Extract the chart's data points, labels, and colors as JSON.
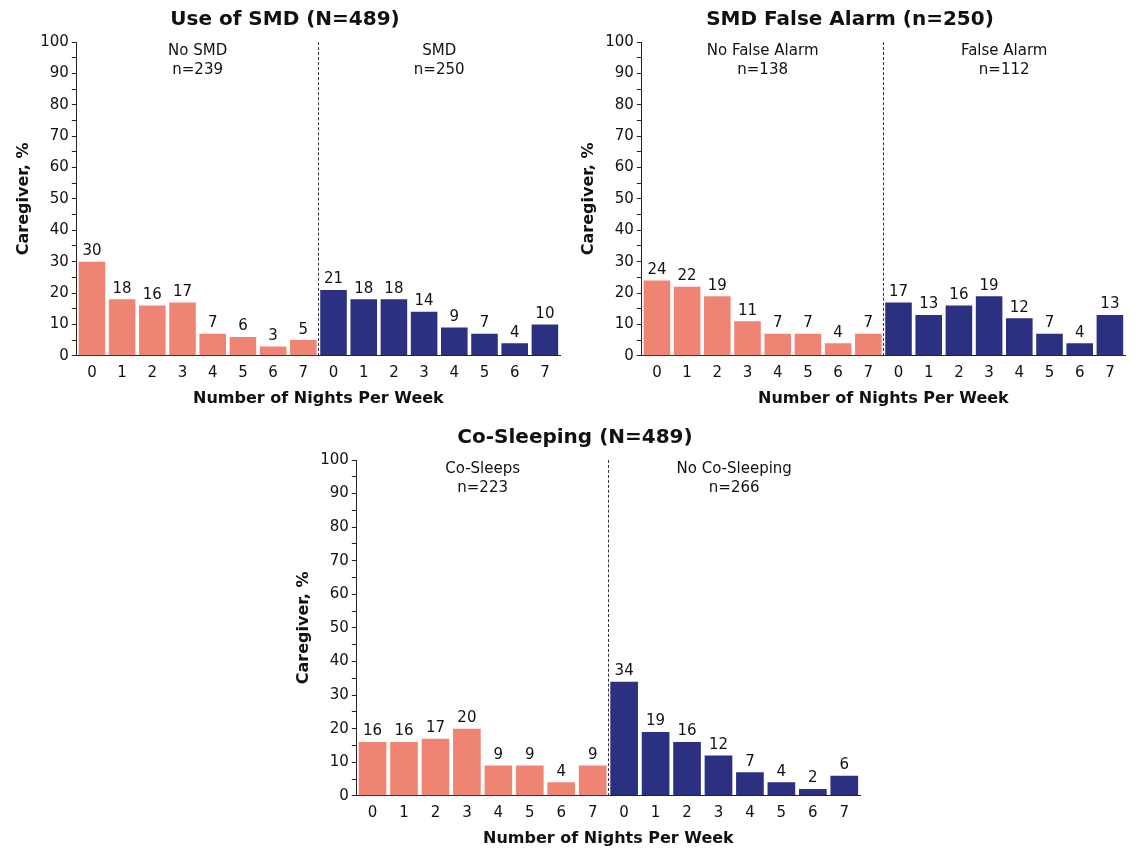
{
  "chart_data": [
    {
      "type": "bar",
      "title": "Use of SMD (N=489)",
      "xlabel": "Number of Nights Per Week",
      "ylabel": "Caregiver, %",
      "categories": [
        "0",
        "1",
        "2",
        "3",
        "4",
        "5",
        "6",
        "7",
        "0",
        "1",
        "2",
        "3",
        "4",
        "5",
        "6",
        "7"
      ],
      "values": [
        30,
        18,
        16,
        17,
        7,
        6,
        3,
        5,
        21,
        18,
        18,
        14,
        9,
        7,
        4,
        10
      ],
      "colors": [
        "#f08474",
        "#f08474",
        "#f08474",
        "#f08474",
        "#f08474",
        "#f08474",
        "#f08474",
        "#f08474",
        "#2b3180",
        "#2b3180",
        "#2b3180",
        "#2b3180",
        "#2b3180",
        "#2b3180",
        "#2b3180",
        "#2b3180"
      ],
      "ylim": [
        0,
        100
      ],
      "yticks": [
        0,
        {
          "value": 5,
          "label": null
        },
        10,
        {
          "value": 15,
          "label": null
        },
        20,
        {
          "value": 25,
          "label": null
        },
        30,
        {
          "value": 35,
          "label": null
        },
        40,
        {
          "value": 45,
          "label": null
        },
        50,
        {
          "value": 55,
          "label": null
        },
        60,
        {
          "value": 65,
          "label": null
        },
        70,
        {
          "value": 75,
          "label": null
        },
        80,
        {
          "value": 85,
          "label": null
        },
        90,
        {
          "value": 95,
          "label": null
        },
        100
      ],
      "annotations": [
        "No SMD\nn=239",
        "SMD\nn=250"
      ],
      "data_labels": true,
      "grid": false,
      "legend": false
    },
    {
      "type": "bar",
      "title": "SMD False Alarm (n=250)",
      "xlabel": "Number of Nights Per Week",
      "ylabel": "Caregiver, %",
      "categories": [
        "0",
        "1",
        "2",
        "3",
        "4",
        "5",
        "6",
        "7",
        "0",
        "1",
        "2",
        "3",
        "4",
        "5",
        "6",
        "7"
      ],
      "values": [
        24,
        22,
        19,
        11,
        7,
        7,
        4,
        7,
        17,
        13,
        16,
        19,
        12,
        7,
        4,
        13
      ],
      "colors": [
        "#f08474",
        "#f08474",
        "#f08474",
        "#f08474",
        "#f08474",
        "#f08474",
        "#f08474",
        "#f08474",
        "#2b3180",
        "#2b3180",
        "#2b3180",
        "#2b3180",
        "#2b3180",
        "#2b3180",
        "#2b3180",
        "#2b3180"
      ],
      "ylim": [
        0,
        100
      ],
      "yticks": [
        0,
        {
          "value": 5,
          "label": null
        },
        10,
        {
          "value": 15,
          "label": null
        },
        20,
        {
          "value": 25,
          "label": null
        },
        30,
        {
          "value": 35,
          "label": null
        },
        40,
        {
          "value": 45,
          "label": null
        },
        50,
        {
          "value": 55,
          "label": null
        },
        60,
        {
          "value": 65,
          "label": null
        },
        70,
        {
          "value": 75,
          "label": null
        },
        80,
        {
          "value": 85,
          "label": null
        },
        90,
        {
          "value": 95,
          "label": null
        },
        100
      ],
      "annotations": [
        "No False Alarm\nn=138",
        "False Alarm\nn=112"
      ],
      "data_labels": true,
      "grid": false,
      "legend": false
    },
    {
      "type": "bar",
      "title": "Co-Sleeping (N=489)",
      "xlabel": "Number of Nights Per Week",
      "ylabel": "Caregiver, %",
      "categories": [
        "0",
        "1",
        "2",
        "3",
        "4",
        "5",
        "6",
        "7",
        "0",
        "1",
        "2",
        "3",
        "4",
        "5",
        "6",
        "7"
      ],
      "values": [
        16,
        16,
        17,
        20,
        9,
        9,
        4,
        9,
        34,
        19,
        16,
        12,
        7,
        4,
        2,
        6
      ],
      "colors": [
        "#f08474",
        "#f08474",
        "#f08474",
        "#f08474",
        "#f08474",
        "#f08474",
        "#f08474",
        "#f08474",
        "#2b3180",
        "#2b3180",
        "#2b3180",
        "#2b3180",
        "#2b3180",
        "#2b3180",
        "#2b3180",
        "#2b3180"
      ],
      "ylim": [
        0,
        100
      ],
      "yticks": [
        0,
        {
          "value": 5,
          "label": null
        },
        10,
        {
          "value": 15,
          "label": null
        },
        20,
        {
          "value": 25,
          "label": null
        },
        30,
        {
          "value": 35,
          "label": null
        },
        40,
        {
          "value": 45,
          "label": null
        },
        50,
        {
          "value": 55,
          "label": null
        },
        60,
        {
          "value": 65,
          "label": null
        },
        70,
        {
          "value": 75,
          "label": null
        },
        80,
        {
          "value": 85,
          "label": null
        },
        90,
        {
          "value": 95,
          "label": null
        },
        100
      ],
      "annotations": [
        "Co-Sleeps\nn=223",
        "No Co-Sleeping\nn=266"
      ],
      "data_labels": true,
      "grid": false,
      "legend": false
    }
  ]
}
